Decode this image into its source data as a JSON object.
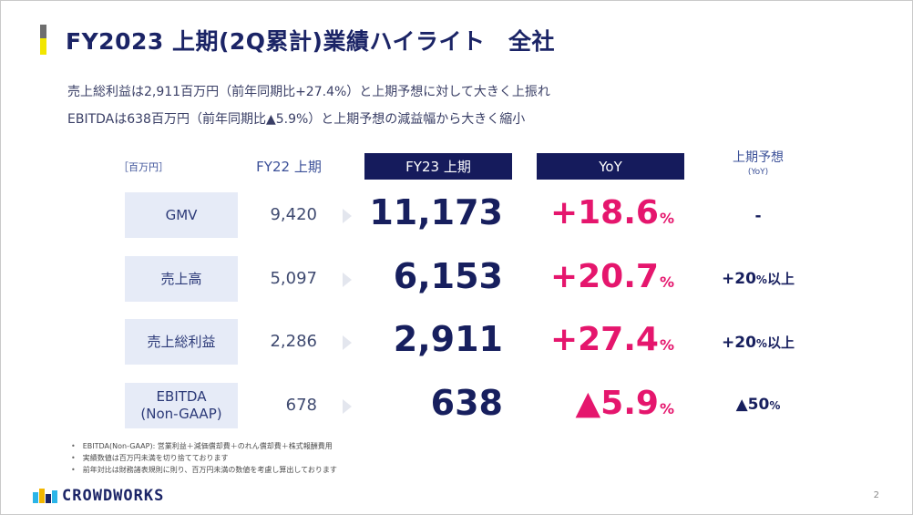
{
  "title": "FY2023 上期(2Q累計)業績ハイライト　全社",
  "summary": [
    "売上総利益は2,911百万円（前年同期比+27.4%）と上期予想に対して大きく上振れ",
    "EBITDAは638百万円（前年同期比▲5.9%）と上期予想の減益幅から大きく縮小"
  ],
  "table": {
    "unit": "［百万円］",
    "headers": {
      "prev": "FY22 上期",
      "current": "FY23 上期",
      "yoy": "YoY",
      "forecast": "上期予想",
      "forecast_sub": "(YoY)"
    },
    "rows": [
      {
        "label": "GMV",
        "label2": "",
        "prev": "9,420",
        "current": "11,173",
        "yoy": "+18.6",
        "yoy_unit": "%",
        "forecast": "-",
        "forecast_unit": "",
        "forecast_suffix": ""
      },
      {
        "label": "売上高",
        "label2": "",
        "prev": "5,097",
        "current": "6,153",
        "yoy": "+20.7",
        "yoy_unit": "%",
        "forecast": "+20",
        "forecast_unit": "%",
        "forecast_suffix": "以上"
      },
      {
        "label": "売上総利益",
        "label2": "",
        "prev": "2,286",
        "current": "2,911",
        "yoy": "+27.4",
        "yoy_unit": "%",
        "forecast": "+20",
        "forecast_unit": "%",
        "forecast_suffix": "以上"
      },
      {
        "label": "EBITDA",
        "label2": "(Non-GAAP)",
        "prev": "678",
        "current": "638",
        "yoy": "▲5.9",
        "yoy_unit": "%",
        "forecast": "▲50",
        "forecast_unit": "%",
        "forecast_suffix": ""
      }
    ]
  },
  "notes": [
    "EBITDA(Non-GAAP): 営業利益＋減価償却費＋のれん償却費＋株式報酬費用",
    "実績数値は百万円未満を切り捨てております",
    "前年対比は財務諸表規則に則り、百万円未満の数値を考慮し算出しております"
  ],
  "logo_text": "CROWDWORKS",
  "page_number": "2",
  "colors": {
    "navy": "#151b5c",
    "accent_pink": "#e5166d",
    "label_bg": "#e6ebf7",
    "bar_yellow": "#f2e600",
    "bar_gray": "#6e6e6e"
  }
}
